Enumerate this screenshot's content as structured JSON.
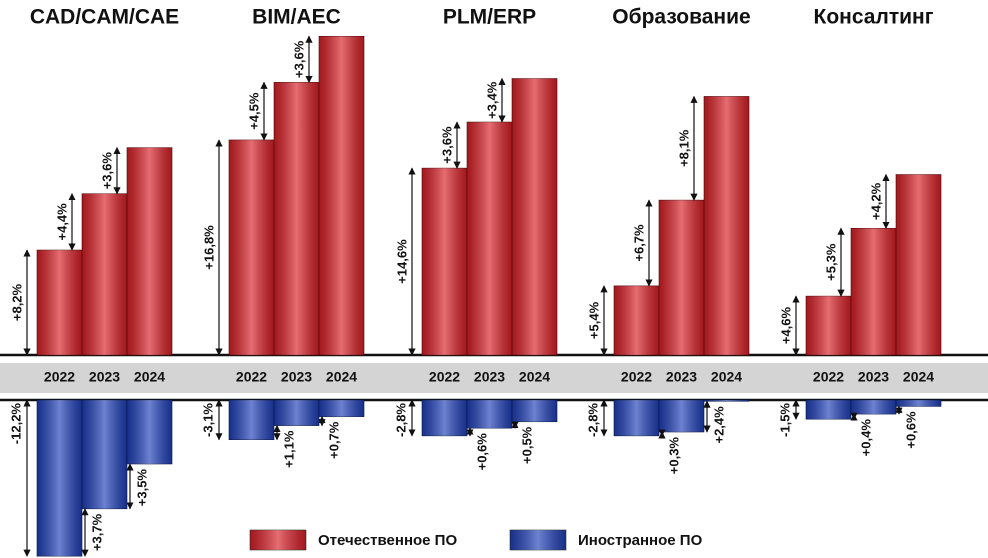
{
  "chart_data": {
    "type": "bar",
    "panels": [
      {
        "title": "CAD/CAM/CAE",
        "categories": [
          "2022",
          "2023",
          "2024"
        ]
      },
      {
        "title": "BIM/AEC",
        "categories": [
          "2022",
          "2023",
          "2024"
        ]
      },
      {
        "title": "PLM/ERP",
        "categories": [
          "2022",
          "2023",
          "2024"
        ]
      },
      {
        "title": "Образование",
        "categories": [
          "2022",
          "2023",
          "2024"
        ]
      },
      {
        "title": "Консалтинг",
        "categories": [
          "2022",
          "2023",
          "2024"
        ]
      }
    ],
    "series": [
      {
        "name": "Отечественное ПО",
        "color": "#d81f26",
        "values": [
          [
            8.2,
            4.4,
            3.6
          ],
          [
            16.8,
            4.5,
            3.6
          ],
          [
            14.6,
            3.6,
            3.4
          ],
          [
            5.4,
            6.7,
            8.1
          ],
          [
            4.6,
            5.3,
            4.2
          ]
        ],
        "value_labels": [
          [
            "+8,2%",
            "+4,4%",
            "+3,6%"
          ],
          [
            "+16,8%",
            "+4,5%",
            "+3,6%"
          ],
          [
            "+14,6%",
            "+3,6%",
            "+3,4%"
          ],
          [
            "+5,4%",
            "+6,7%",
            "+8,1%"
          ],
          [
            "+4,6%",
            "+5,3%",
            "+4,2%"
          ]
        ]
      },
      {
        "name": "Иностранное ПО",
        "color": "#1f3fb8",
        "values": [
          [
            -12.2,
            3.7,
            3.5
          ],
          [
            -3.1,
            1.1,
            0.7
          ],
          [
            -2.8,
            0.6,
            0.5
          ],
          [
            -2.8,
            0.3,
            2.4
          ],
          [
            -1.5,
            0.4,
            0.6
          ]
        ],
        "value_labels": [
          [
            "-12,2%",
            "+3,7%",
            "+3,5%"
          ],
          [
            "-3,1%",
            "+1,1%",
            "+0,7%"
          ],
          [
            "-2,8%",
            "+0,6%",
            "+0,5%"
          ],
          [
            "-2,8%",
            "+0,3%",
            "+2,4%"
          ],
          [
            "-1,5%",
            "+0,4%",
            "+0,6%"
          ]
        ]
      }
    ]
  }
}
